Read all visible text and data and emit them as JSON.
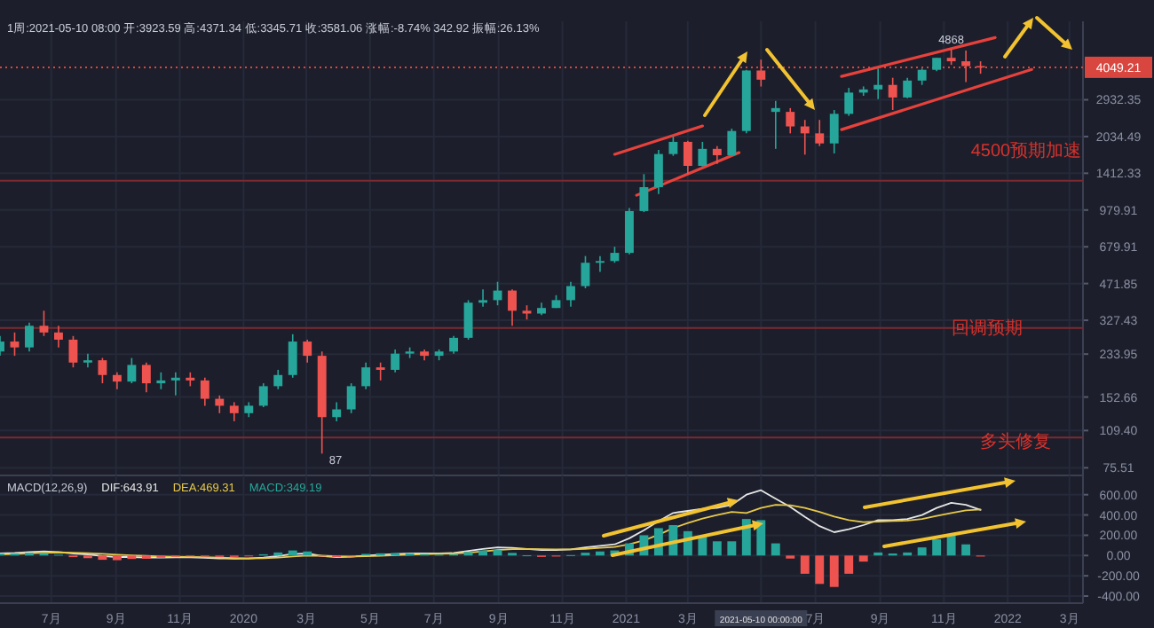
{
  "chart_data": [
    {
      "type": "candlestick",
      "subtitle": "1周:2021-05-10 08:00 开:3923.59 高:4371.34 低:3345.71 收:3581.06 涨幅:-8.74% 342.92 振幅:26.13%",
      "x": [
        "2019-05-13",
        "2019-05-27",
        "2019-06-10",
        "2019-06-24",
        "2019-07-08",
        "2019-07-22",
        "2019-08-05",
        "2019-08-19",
        "2019-09-02",
        "2019-09-16",
        "2019-09-30",
        "2019-10-14",
        "2019-10-28",
        "2019-11-11",
        "2019-11-25",
        "2019-12-09",
        "2019-12-23",
        "2020-01-06",
        "2020-01-20",
        "2020-02-03",
        "2020-02-17",
        "2020-03-02",
        "2020-03-16",
        "2020-03-30",
        "2020-04-13",
        "2020-04-27",
        "2020-05-11",
        "2020-05-25",
        "2020-06-08",
        "2020-06-22",
        "2020-07-06",
        "2020-07-20",
        "2020-08-03",
        "2020-08-17",
        "2020-08-31",
        "2020-09-14",
        "2020-09-28",
        "2020-10-12",
        "2020-10-26",
        "2020-11-09",
        "2020-11-23",
        "2020-12-07",
        "2020-12-21",
        "2021-01-04",
        "2021-01-18",
        "2021-02-01",
        "2021-02-15",
        "2021-03-01",
        "2021-03-15",
        "2021-03-29",
        "2021-04-12",
        "2021-04-26",
        "2021-05-10",
        "2021-05-24",
        "2021-06-07",
        "2021-06-21",
        "2021-07-05",
        "2021-07-19",
        "2021-08-02",
        "2021-08-16",
        "2021-08-30",
        "2021-09-13",
        "2021-09-27",
        "2021-10-11",
        "2021-10-25",
        "2021-11-08",
        "2021-11-22",
        "2021-12-06"
      ],
      "ohlc": [
        [
          240,
          280,
          230,
          265
        ],
        [
          265,
          290,
          230,
          250
        ],
        [
          250,
          320,
          240,
          310
        ],
        [
          310,
          360,
          280,
          290
        ],
        [
          290,
          310,
          250,
          270
        ],
        [
          270,
          280,
          205,
          215
        ],
        [
          215,
          235,
          205,
          220
        ],
        [
          220,
          225,
          175,
          190
        ],
        [
          190,
          195,
          165,
          178
        ],
        [
          178,
          225,
          175,
          210
        ],
        [
          210,
          215,
          160,
          175
        ],
        [
          175,
          195,
          165,
          180
        ],
        [
          180,
          195,
          155,
          185
        ],
        [
          185,
          195,
          170,
          180
        ],
        [
          180,
          185,
          140,
          150
        ],
        [
          150,
          155,
          130,
          140
        ],
        [
          140,
          145,
          120,
          130
        ],
        [
          130,
          145,
          125,
          140
        ],
        [
          140,
          175,
          138,
          170
        ],
        [
          170,
          200,
          165,
          190
        ],
        [
          190,
          285,
          185,
          265
        ],
        [
          265,
          270,
          215,
          230
        ],
        [
          230,
          240,
          87,
          125
        ],
        [
          125,
          145,
          120,
          135
        ],
        [
          135,
          175,
          130,
          170
        ],
        [
          170,
          215,
          165,
          205
        ],
        [
          205,
          215,
          180,
          200
        ],
        [
          200,
          245,
          195,
          235
        ],
        [
          235,
          250,
          225,
          240
        ],
        [
          240,
          245,
          220,
          230
        ],
        [
          230,
          245,
          220,
          240
        ],
        [
          240,
          280,
          235,
          275
        ],
        [
          275,
          400,
          270,
          390
        ],
        [
          390,
          445,
          375,
          400
        ],
        [
          400,
          480,
          380,
          440
        ],
        [
          440,
          445,
          310,
          360
        ],
        [
          360,
          380,
          330,
          350
        ],
        [
          350,
          390,
          345,
          370
        ],
        [
          370,
          420,
          370,
          400
        ],
        [
          400,
          480,
          375,
          460
        ],
        [
          460,
          620,
          450,
          580
        ],
        [
          580,
          620,
          530,
          590
        ],
        [
          590,
          680,
          580,
          640
        ],
        [
          640,
          1000,
          630,
          970
        ],
        [
          970,
          1400,
          960,
          1230
        ],
        [
          1230,
          1780,
          1150,
          1710
        ],
        [
          1710,
          2040,
          1680,
          1930
        ],
        [
          1930,
          1950,
          1400,
          1520
        ],
        [
          1520,
          1930,
          1510,
          1800
        ],
        [
          1800,
          1850,
          1550,
          1690
        ],
        [
          1690,
          2200,
          1680,
          2150
        ],
        [
          2150,
          3950,
          2100,
          3923.59
        ],
        [
          3923.59,
          4371.34,
          3345.71,
          3581.06
        ],
        [
          2600,
          2900,
          1800,
          2700
        ],
        [
          2600,
          2700,
          2100,
          2250
        ],
        [
          2250,
          2400,
          1700,
          2100
        ],
        [
          2100,
          2400,
          1850,
          1900
        ],
        [
          1900,
          2650,
          1720,
          2550
        ],
        [
          2550,
          3300,
          2500,
          3150
        ],
        [
          3150,
          3350,
          3050,
          3250
        ],
        [
          3250,
          4000,
          2950,
          3400
        ],
        [
          3400,
          3650,
          2650,
          3000
        ],
        [
          3000,
          3650,
          2980,
          3550
        ],
        [
          3550,
          4000,
          3400,
          3950
        ],
        [
          3950,
          4460,
          3900,
          4450
        ],
        [
          4450,
          4868,
          4150,
          4300
        ],
        [
          4300,
          4780,
          3500,
          4100
        ],
        [
          4100,
          4300,
          3800,
          4049.21
        ]
      ],
      "series": [
        {
          "type": "line",
          "color": "#e8413c",
          "x": [
            "2020-12-21",
            "2021-03-15"
          ],
          "values": [
            1705,
            2260
          ]
        },
        {
          "type": "line",
          "color": "#e8413c",
          "x": [
            "2021-01-11",
            "2021-04-19"
          ],
          "values": [
            1135,
            1734
          ]
        },
        {
          "type": "line",
          "color": "#e8413c",
          "x": [
            "2021-07-26",
            "2021-12-20"
          ],
          "values": [
            3700,
            5440
          ]
        },
        {
          "type": "line",
          "color": "#e8413c",
          "x": [
            "2021-07-26",
            "2022-01-24"
          ],
          "values": [
            2180,
            3965
          ]
        }
      ],
      "xlim": [
        "2019-05-13",
        "2022-03-14"
      ],
      "ylim": [
        70,
        6400
      ],
      "log": true,
      "xticks": [
        {
          "value": "2019-07-01",
          "label": null
        },
        {
          "value": "2019-09-01",
          "label": null
        },
        {
          "value": "2019-11-01",
          "label": null
        },
        {
          "value": "2020-01-01",
          "label": null
        },
        {
          "value": "2020-03-01",
          "label": null
        },
        {
          "value": "2020-05-01",
          "label": null
        },
        {
          "value": "2020-07-01",
          "label": null
        },
        {
          "value": "2020-09-01",
          "label": null
        },
        {
          "value": "2020-11-01",
          "label": null
        },
        {
          "value": "2021-01-01",
          "label": null
        },
        {
          "value": "2021-03-01",
          "label": null
        },
        {
          "value": "2021-05-10",
          "label": null
        },
        {
          "value": "2021-07-01",
          "label": null
        },
        {
          "value": "2021-09-01",
          "label": null
        },
        {
          "value": "2021-11-01",
          "label": null
        },
        {
          "value": "2022-01-01",
          "label": null
        },
        {
          "value": "2022-03-01",
          "label": null
        }
      ],
      "yticks": [
        75.51,
        {
          "value": 109.4,
          "label": "109.40"
        },
        152.66,
        233.95,
        327.43,
        471.85,
        679.91,
        979.91,
        1412.33,
        2034.49,
        2932.35
      ],
      "tick_labels": "y",
      "grid": true,
      "ref_lines": [
        {
          "axis": "y",
          "value": 1310,
          "color": "#7a2a30"
        },
        {
          "axis": "y",
          "value": 303,
          "color": "#7a2a30"
        },
        {
          "axis": "y",
          "value": 102,
          "color": "#7a2a30"
        },
        {
          "axis": "y",
          "value": 4049.21,
          "label": "4049.21",
          "color": "#d9453f",
          "line_style": "dotted"
        }
      ],
      "annotations": [
        "4500预期加速",
        "回调预期",
        "多头修复",
        {
          "text": "87",
          "x": "2020-03-16",
          "y": 87
        },
        {
          "text": "4868",
          "x": "2021-11-08",
          "y": 4868
        }
      ]
    },
    {
      "type": "bar",
      "title": "MACD(12,26,9)",
      "legend": "top left",
      "x": [
        "2019-05-13",
        "2019-05-27",
        "2019-06-10",
        "2019-06-24",
        "2019-07-08",
        "2019-07-22",
        "2019-08-05",
        "2019-08-19",
        "2019-09-02",
        "2019-09-16",
        "2019-09-30",
        "2019-10-14",
        "2019-10-28",
        "2019-11-11",
        "2019-11-25",
        "2019-12-09",
        "2019-12-23",
        "2020-01-06",
        "2020-01-20",
        "2020-02-03",
        "2020-02-17",
        "2020-03-02",
        "2020-03-16",
        "2020-03-30",
        "2020-04-13",
        "2020-04-27",
        "2020-05-11",
        "2020-05-25",
        "2020-06-08",
        "2020-06-22",
        "2020-07-06",
        "2020-07-20",
        "2020-08-03",
        "2020-08-17",
        "2020-08-31",
        "2020-09-14",
        "2020-09-28",
        "2020-10-12",
        "2020-10-26",
        "2020-11-09",
        "2020-11-23",
        "2020-12-07",
        "2020-12-21",
        "2021-01-04",
        "2021-01-18",
        "2021-02-01",
        "2021-02-15",
        "2021-03-01",
        "2021-03-15",
        "2021-03-29",
        "2021-04-12",
        "2021-04-26",
        "2021-05-10",
        "2021-05-24",
        "2021-06-07",
        "2021-06-21",
        "2021-07-05",
        "2021-07-19",
        "2021-08-02",
        "2021-08-16",
        "2021-08-30",
        "2021-09-13",
        "2021-09-27",
        "2021-10-11",
        "2021-10-25",
        "2021-11-08",
        "2021-11-22",
        "2021-12-06"
      ],
      "series": [
        {
          "name": "DIF:643.91",
          "type": "line",
          "color": "#e6e6e6",
          "values": [
            20,
            25,
            35,
            40,
            35,
            20,
            10,
            -5,
            -15,
            -15,
            -20,
            -20,
            -18,
            -18,
            -22,
            -28,
            -32,
            -30,
            -20,
            -5,
            15,
            20,
            -5,
            -15,
            -12,
            0,
            8,
            15,
            20,
            20,
            20,
            25,
            45,
            65,
            80,
            75,
            65,
            55,
            55,
            60,
            80,
            95,
            110,
            170,
            250,
            340,
            420,
            440,
            460,
            470,
            500,
            600,
            643.91,
            560,
            480,
            380,
            290,
            230,
            260,
            300,
            350,
            350,
            360,
            400,
            470,
            520,
            500,
            450
          ]
        },
        {
          "name": "DEA:469.31",
          "type": "line",
          "color": "#e8c94a",
          "values": [
            10,
            15,
            22,
            28,
            31,
            28,
            23,
            16,
            8,
            2,
            -4,
            -9,
            -12,
            -14,
            -17,
            -21,
            -25,
            -28,
            -26,
            -20,
            -10,
            0,
            -2,
            -7,
            -10,
            -8,
            -3,
            3,
            9,
            13,
            16,
            19,
            28,
            40,
            53,
            62,
            64,
            62,
            60,
            60,
            66,
            75,
            85,
            110,
            150,
            205,
            270,
            320,
            365,
            400,
            430,
            420,
            469.31,
            500,
            495,
            470,
            430,
            385,
            350,
            330,
            335,
            340,
            345,
            360,
            390,
            420,
            445,
            455
          ]
        },
        {
          "name": "MACD:349.19",
          "type": "bar",
          "color": "#26a69a",
          "values": [
            20,
            20,
            26,
            24,
            8,
            -16,
            -26,
            -42,
            -46,
            -34,
            -32,
            -22,
            -12,
            -8,
            -10,
            -14,
            -14,
            -4,
            12,
            30,
            50,
            40,
            -6,
            -16,
            -4,
            16,
            22,
            24,
            22,
            14,
            8,
            12,
            34,
            50,
            54,
            26,
            2,
            -14,
            -10,
            4,
            28,
            40,
            50,
            120,
            200,
            270,
            300,
            240,
            190,
            140,
            140,
            360,
            349.19,
            120,
            -30,
            -180,
            -280,
            -310,
            -180,
            -60,
            30,
            20,
            30,
            80,
            160,
            200,
            110,
            -10
          ],
          "colors": [
            "#26a69a",
            "#26a69a",
            "#26a69a",
            "#26a69a",
            "#26a69a",
            "#ef5350",
            "#ef5350",
            "#ef5350",
            "#ef5350",
            "#ef5350",
            "#ef5350",
            "#ef5350",
            "#ef5350",
            "#ef5350",
            "#ef5350",
            "#ef5350",
            "#ef5350",
            "#ef5350",
            "#26a69a",
            "#26a69a",
            "#26a69a",
            "#26a69a",
            "#ef5350",
            "#ef5350",
            "#ef5350",
            "#26a69a",
            "#26a69a",
            "#26a69a",
            "#26a69a",
            "#26a69a",
            "#26a69a",
            "#26a69a",
            "#26a69a",
            "#26a69a",
            "#26a69a",
            "#26a69a",
            "#26a69a",
            "#ef5350",
            "#ef5350",
            "#26a69a",
            "#26a69a",
            "#26a69a",
            "#26a69a",
            "#26a69a",
            "#26a69a",
            "#26a69a",
            "#26a69a",
            "#26a69a",
            "#26a69a",
            "#26a69a",
            "#26a69a",
            "#26a69a",
            "#26a69a",
            "#26a69a",
            "#ef5350",
            "#ef5350",
            "#ef5350",
            "#ef5350",
            "#ef5350",
            "#ef5350",
            "#26a69a",
            "#26a69a",
            "#26a69a",
            "#26a69a",
            "#26a69a",
            "#26a69a",
            "#26a69a",
            "#ef5350"
          ]
        }
      ],
      "xlim": [
        "2019-05-13",
        "2022-03-14"
      ],
      "ylim": [
        -470,
        790
      ],
      "xticks": [
        {
          "value": "2019-07-01",
          "label": "7月"
        },
        {
          "value": "2019-09-01",
          "label": "9月"
        },
        {
          "value": "2019-11-01",
          "label": "11月"
        },
        {
          "value": "2020-01-01",
          "label": "2020"
        },
        {
          "value": "2020-03-01",
          "label": "3月"
        },
        {
          "value": "2020-05-01",
          "label": "5月"
        },
        {
          "value": "2020-07-01",
          "label": "7月"
        },
        {
          "value": "2020-09-01",
          "label": "9月"
        },
        {
          "value": "2020-11-01",
          "label": "11月"
        },
        {
          "value": "2021-01-01",
          "label": "2021"
        },
        {
          "value": "2021-03-01",
          "label": "3月"
        },
        {
          "value": "2021-05-10",
          "label": "2021-05-10 00:00:00"
        },
        {
          "value": "2021-07-01",
          "label": "7月"
        },
        {
          "value": "2021-09-01",
          "label": "9月"
        },
        {
          "value": "2021-11-01",
          "label": "11月"
        },
        {
          "value": "2022-01-01",
          "label": "2022"
        },
        {
          "value": "2022-03-01",
          "label": "3月"
        }
      ],
      "yticks": [
        {
          "value": 600,
          "label": "600.00"
        },
        {
          "value": 400,
          "label": "400.00"
        },
        {
          "value": 200,
          "label": "200.00"
        },
        {
          "value": 0,
          "label": "0.00"
        },
        {
          "value": -200,
          "label": "-200.00"
        },
        {
          "value": -400,
          "label": "-400.00"
        }
      ],
      "grid": true
    }
  ]
}
